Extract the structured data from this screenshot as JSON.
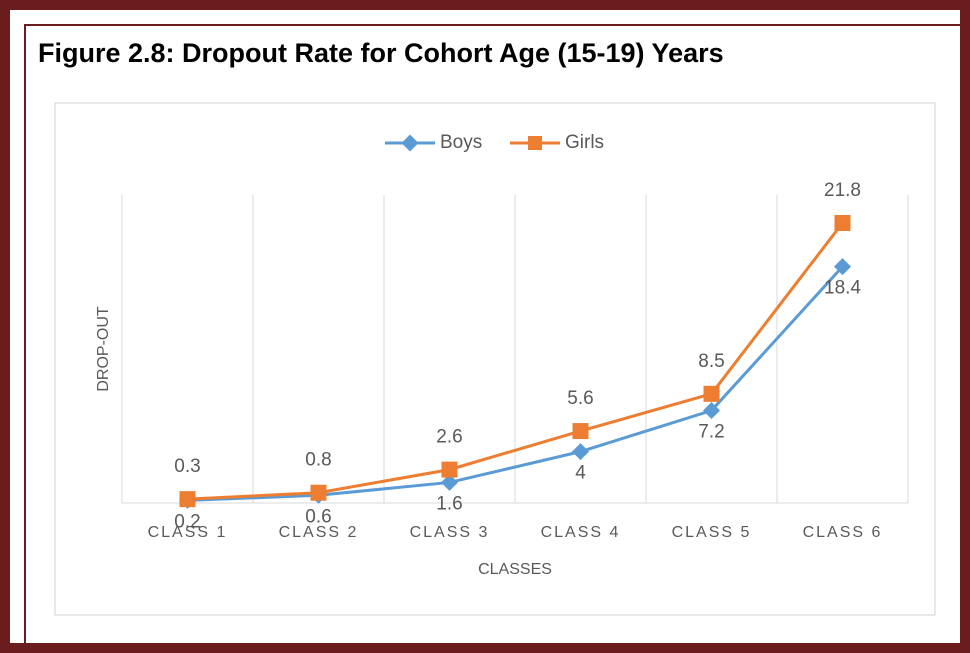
{
  "title": "Figure 2.8: Dropout Rate for Cohort Age (15-19) Years",
  "chart_data": {
    "type": "line",
    "categories": [
      "CLASS 1",
      "CLASS 2",
      "CLASS 3",
      "CLASS 4",
      "CLASS 5",
      "CLASS 6"
    ],
    "series": [
      {
        "name": "Boys",
        "color": "#5b9bd5",
        "values": [
          0.2,
          0.6,
          1.6,
          4,
          7.2,
          18.4
        ]
      },
      {
        "name": "Girls",
        "color": "#ed7d31",
        "values": [
          0.3,
          0.8,
          2.6,
          5.6,
          8.5,
          21.8
        ]
      }
    ],
    "xlabel": "CLASSES",
    "ylabel": "DROP-OUT",
    "legend": "top",
    "grid": true
  }
}
